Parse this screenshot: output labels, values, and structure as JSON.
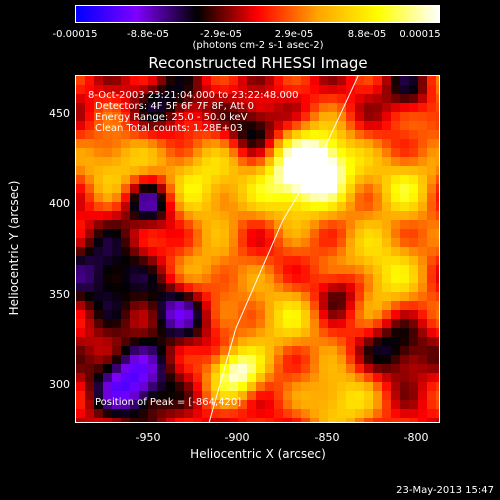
{
  "colorbar": {
    "tick_labels": [
      "-0.00015",
      "-8.8e-05",
      "-2.9e-05",
      "2.9e-05",
      "8.8e-05",
      "0.00015"
    ],
    "units": "(photons cm-2 s-1 asec-2)",
    "range": [
      -0.00015,
      0.00015
    ]
  },
  "chart_data": {
    "type": "heatmap",
    "title": "Reconstructed RHESSI Image",
    "xlabel": "Heliocentric X (arcsec)",
    "ylabel": "Heliocentric Y (arcsec)",
    "xlim": [
      -990,
      -797
    ],
    "ylim": [
      278,
      470
    ],
    "x_ticks": [
      -950,
      -900,
      -850,
      -800
    ],
    "y_ticks": [
      300,
      350,
      400,
      450
    ],
    "annotations": [
      "8-Oct-2003 23:21:04.000 to 23:22:48.000",
      "Detectors: 4F 5F 6F 7F 8F, Att 0",
      "Energy Range: 25.0 - 50.0 keV",
      "Clean     Total counts: 1.28E+03"
    ],
    "peak_label": "Position of Peak = [-864,420]",
    "peak": [
      -864,
      420
    ],
    "limb_curve": [
      [
        -920,
        275
      ],
      [
        -905,
        330
      ],
      [
        -880,
        390
      ],
      [
        -860,
        425
      ],
      [
        -840,
        470
      ]
    ],
    "colormap": [
      "#0000ff",
      "#7f00ff",
      "#000000",
      "#ff0000",
      "#ffa500",
      "#ffff00",
      "#ffffff"
    ],
    "blobs": [
      {
        "x": -860,
        "y": 422,
        "amp": 1.0,
        "w": 14
      },
      {
        "x": -875,
        "y": 410,
        "amp": 0.7,
        "w": 16
      },
      {
        "x": -905,
        "y": 305,
        "amp": 0.95,
        "w": 10
      },
      {
        "x": -925,
        "y": 410,
        "amp": 0.6,
        "w": 18
      },
      {
        "x": -970,
        "y": 420,
        "amp": 0.5,
        "w": 14
      },
      {
        "x": -830,
        "y": 360,
        "amp": 0.6,
        "w": 20
      },
      {
        "x": -815,
        "y": 410,
        "amp": 0.55,
        "w": 14
      },
      {
        "x": -880,
        "y": 335,
        "amp": 0.5,
        "w": 16
      },
      {
        "x": -850,
        "y": 290,
        "amp": 0.6,
        "w": 14
      },
      {
        "x": -920,
        "y": 360,
        "amp": 0.4,
        "w": 14
      },
      {
        "x": -800,
        "y": 455,
        "amp": 0.5,
        "w": 12
      },
      {
        "x": -960,
        "y": 300,
        "amp": -0.8,
        "w": 14
      },
      {
        "x": -975,
        "y": 360,
        "amp": -0.5,
        "w": 16
      },
      {
        "x": -950,
        "y": 400,
        "amp": -0.7,
        "w": 10
      },
      {
        "x": -810,
        "y": 460,
        "amp": -0.6,
        "w": 10
      },
      {
        "x": -935,
        "y": 340,
        "amp": -0.6,
        "w": 12
      },
      {
        "x": -850,
        "y": 350,
        "amp": -0.6,
        "w": 10
      },
      {
        "x": -820,
        "y": 320,
        "amp": -0.5,
        "w": 12
      },
      {
        "x": -895,
        "y": 440,
        "amp": -0.5,
        "w": 10
      },
      {
        "x": -940,
        "y": 455,
        "amp": -0.4,
        "w": 12
      }
    ]
  },
  "footer": {
    "date": "23-May-2013 15:47"
  }
}
